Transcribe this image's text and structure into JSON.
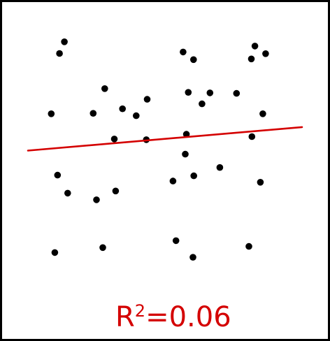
{
  "chart_data": {
    "type": "scatter",
    "title": "",
    "xlabel": "",
    "ylabel": "",
    "xlim": [
      0,
      100
    ],
    "ylim": [
      0,
      100
    ],
    "points": [
      [
        13.3,
        97.7
      ],
      [
        11.5,
        92.8
      ],
      [
        28.0,
        78.0
      ],
      [
        8.5,
        67.4
      ],
      [
        23.8,
        67.6
      ],
      [
        34.5,
        69.5
      ],
      [
        39.5,
        66.6
      ],
      [
        43.5,
        73.5
      ],
      [
        31.5,
        56.8
      ],
      [
        43.2,
        56.5
      ],
      [
        10.8,
        41.6
      ],
      [
        14.5,
        34.0
      ],
      [
        25.0,
        31.2
      ],
      [
        32.0,
        34.9
      ],
      [
        9.8,
        9.0
      ],
      [
        27.3,
        11.1
      ],
      [
        56.6,
        93.4
      ],
      [
        60.4,
        90.2
      ],
      [
        58.5,
        76.4
      ],
      [
        66.4,
        76.2
      ],
      [
        63.5,
        71.6
      ],
      [
        57.8,
        58.8
      ],
      [
        76.1,
        76.0
      ],
      [
        82.8,
        95.9
      ],
      [
        81.5,
        90.5
      ],
      [
        86.7,
        92.7
      ],
      [
        85.7,
        67.4
      ],
      [
        81.7,
        57.8
      ],
      [
        57.4,
        50.4
      ],
      [
        70.0,
        44.8
      ],
      [
        60.5,
        41.3
      ],
      [
        52.9,
        39.1
      ],
      [
        84.8,
        38.6
      ],
      [
        54.0,
        14.0
      ],
      [
        60.2,
        7.0
      ],
      [
        80.6,
        11.6
      ]
    ],
    "fit_line": {
      "x": [
        0,
        100
      ],
      "y": [
        51.9,
        61.8
      ]
    },
    "annotation": {
      "base": "R",
      "sup": "2",
      "rest": "=0.06"
    },
    "colors": {
      "points": "#000000",
      "fit_line": "#d40000",
      "annotation": "#d40000"
    }
  }
}
